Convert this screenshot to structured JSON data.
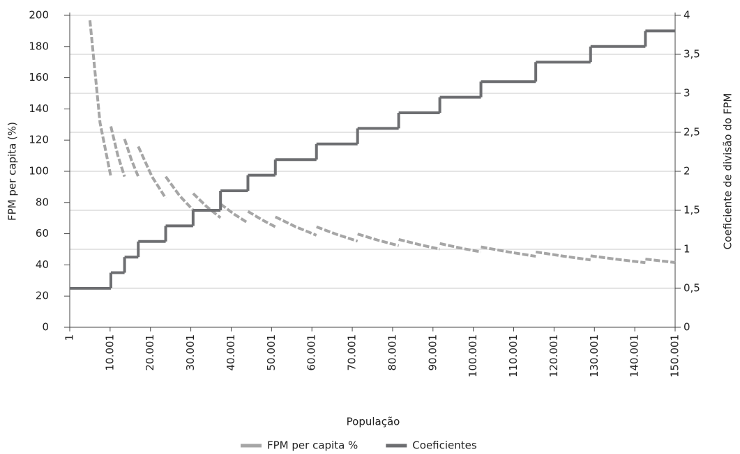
{
  "chart_data": {
    "type": "line",
    "x_label": "População",
    "y_label": "FPM per capita (%)",
    "y2_label": "Coeficiente de divisão do FPM",
    "xlim": [
      1,
      150001
    ],
    "xticks": [
      1,
      {
        "value": 10001,
        "label": "10.001"
      },
      {
        "value": 20001,
        "label": "20.001"
      },
      {
        "value": 30001,
        "label": "30.001"
      },
      {
        "value": 40001,
        "label": "40.001"
      },
      {
        "value": 50001,
        "label": "50.001"
      },
      {
        "value": 60001,
        "label": "60.001"
      },
      {
        "value": 70001,
        "label": "70.001"
      },
      {
        "value": 80001,
        "label": "80.001"
      },
      {
        "value": 90001,
        "label": "90.001"
      },
      {
        "value": 100001,
        "label": "100.001"
      },
      {
        "value": 110001,
        "label": "110.001"
      },
      {
        "value": 120001,
        "label": "120.001"
      },
      {
        "value": 130001,
        "label": "130.001"
      },
      {
        "value": 140001,
        "label": "140.001"
      },
      {
        "value": 150001,
        "label": "150.001"
      }
    ],
    "ylim": [
      0,
      200
    ],
    "yticks": [
      0,
      20,
      40,
      60,
      80,
      100,
      120,
      140,
      160,
      180,
      200
    ],
    "y2lim": [
      0,
      4
    ],
    "y2ticks": [
      0,
      {
        "value": 0.5,
        "label": "0,5"
      },
      1,
      {
        "value": 1.5,
        "label": "1,5"
      },
      2,
      {
        "value": 2.5,
        "label": "2,5"
      },
      3,
      {
        "value": 3.5,
        "label": "3,5"
      },
      4
    ],
    "grid": "y2",
    "series": [
      {
        "name": "FPM per capita %",
        "color": "#a6a6a6",
        "dashed": true,
        "x": [
          5000,
          7500,
          10188,
          null,
          10189,
          11900,
          13584,
          null,
          13585,
          15300,
          16980,
          null,
          16981,
          20400,
          23772,
          null,
          23773,
          27200,
          30564,
          null,
          30565,
          34000,
          37356,
          null,
          37357,
          40800,
          44148,
          null,
          44149,
          47500,
          50940,
          null,
          50941,
          56000,
          61128,
          null,
          61129,
          66200,
          71316,
          null,
          71317,
          76400,
          81504,
          null,
          81505,
          86600,
          91692,
          null,
          91693,
          96800,
          101880,
          null,
          101881,
          108700,
          115464,
          null,
          115465,
          122300,
          129048,
          null,
          129049,
          135800,
          142632,
          null,
          142633,
          150000
        ],
        "values": [
          196.8,
          131.2,
          96.6,
          null,
          128.8,
          110.3,
          96.6,
          null,
          120.7,
          107.2,
          96.6,
          null,
          115.9,
          96.5,
          82.8,
          null,
          96.6,
          84.4,
          75.1,
          null,
          85.8,
          77.2,
          70.2,
          null,
          79.0,
          72.4,
          66.9,
          null,
          74.3,
          69.1,
          64.4,
          null,
          70.8,
          64.4,
          59.0,
          null,
          64.4,
          59.5,
          55.2,
          null,
          59.8,
          55.8,
          52.3,
          null,
          56.3,
          53.0,
          50.1,
          null,
          53.7,
          50.8,
          48.3,
          null,
          51.5,
          48.3,
          45.5,
          null,
          48.3,
          45.6,
          43.2,
          null,
          45.8,
          43.5,
          41.4,
          null,
          43.7,
          41.5
        ]
      },
      {
        "name": "Coeficientes",
        "color": "#6d6e71",
        "axis": "y2",
        "step": "post",
        "x": [
          1,
          10189,
          13585,
          16981,
          23773,
          30565,
          37357,
          44149,
          50941,
          61129,
          71317,
          81505,
          91693,
          101881,
          115465,
          129049,
          142633
        ],
        "values": [
          0.5,
          0.7,
          0.9,
          1.1,
          1.3,
          1.5,
          1.75,
          1.95,
          2.15,
          2.35,
          2.55,
          2.75,
          2.95,
          3.15,
          3.4,
          3.6,
          3.8
        ]
      }
    ]
  }
}
